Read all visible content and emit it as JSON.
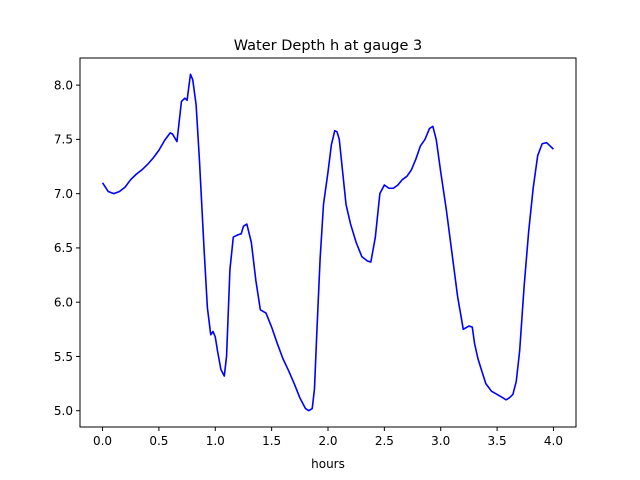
{
  "chart_data": {
    "type": "line",
    "title": "Water Depth h at gauge 3",
    "xlabel": "hours",
    "ylabel": "",
    "xlim": [
      -0.2,
      4.2
    ],
    "ylim": [
      4.85,
      8.25
    ],
    "grid": false,
    "x_ticks": [
      0.0,
      0.5,
      1.0,
      1.5,
      2.0,
      2.5,
      3.0,
      3.5,
      4.0
    ],
    "x_tick_labels": [
      "0.0",
      "0.5",
      "1.0",
      "1.5",
      "2.0",
      "2.5",
      "3.0",
      "3.5",
      "4.0"
    ],
    "y_ticks": [
      5.0,
      5.5,
      6.0,
      6.5,
      7.0,
      7.5,
      8.0
    ],
    "y_tick_labels": [
      "5.0",
      "5.5",
      "6.0",
      "6.5",
      "7.0",
      "7.5",
      "8.0"
    ],
    "line_color": "#0000ff",
    "series": [
      {
        "x": [
          0.0,
          0.05,
          0.1,
          0.15,
          0.2,
          0.25,
          0.3,
          0.35,
          0.4,
          0.45,
          0.5,
          0.55,
          0.6,
          0.62,
          0.66,
          0.7,
          0.73,
          0.75,
          0.78,
          0.8,
          0.83,
          0.86,
          0.9,
          0.93,
          0.96,
          0.98,
          1.0,
          1.02,
          1.05,
          1.08,
          1.1,
          1.13,
          1.16,
          1.2,
          1.23,
          1.25,
          1.28,
          1.32,
          1.36,
          1.4,
          1.45,
          1.5,
          1.55,
          1.6,
          1.65,
          1.7,
          1.75,
          1.8,
          1.83,
          1.86,
          1.88,
          1.9,
          1.93,
          1.96,
          2.0,
          2.03,
          2.06,
          2.08,
          2.1,
          2.13,
          2.16,
          2.2,
          2.25,
          2.3,
          2.35,
          2.38,
          2.42,
          2.46,
          2.5,
          2.54,
          2.58,
          2.62,
          2.66,
          2.7,
          2.74,
          2.78,
          2.82,
          2.86,
          2.9,
          2.93,
          2.96,
          3.0,
          3.05,
          3.1,
          3.15,
          3.2,
          3.25,
          3.28,
          3.3,
          3.33,
          3.36,
          3.4,
          3.45,
          3.5,
          3.55,
          3.58,
          3.61,
          3.64,
          3.67,
          3.7,
          3.74,
          3.78,
          3.82,
          3.86,
          3.9,
          3.94,
          3.97,
          4.0
        ],
        "y": [
          7.1,
          7.02,
          7.0,
          7.02,
          7.06,
          7.13,
          7.18,
          7.22,
          7.27,
          7.33,
          7.4,
          7.49,
          7.56,
          7.55,
          7.48,
          7.85,
          7.88,
          7.86,
          8.1,
          8.05,
          7.82,
          7.3,
          6.5,
          5.95,
          5.7,
          5.73,
          5.68,
          5.55,
          5.38,
          5.32,
          5.5,
          6.3,
          6.6,
          6.62,
          6.63,
          6.7,
          6.72,
          6.55,
          6.2,
          5.93,
          5.9,
          5.77,
          5.62,
          5.48,
          5.37,
          5.25,
          5.12,
          5.02,
          5.0,
          5.02,
          5.2,
          5.7,
          6.4,
          6.9,
          7.2,
          7.45,
          7.58,
          7.57,
          7.5,
          7.2,
          6.9,
          6.72,
          6.55,
          6.42,
          6.38,
          6.37,
          6.6,
          7.0,
          7.08,
          7.05,
          7.05,
          7.08,
          7.13,
          7.16,
          7.22,
          7.32,
          7.44,
          7.5,
          7.6,
          7.62,
          7.5,
          7.2,
          6.85,
          6.45,
          6.05,
          5.75,
          5.78,
          5.77,
          5.62,
          5.48,
          5.38,
          5.25,
          5.18,
          5.15,
          5.12,
          5.1,
          5.12,
          5.15,
          5.27,
          5.55,
          6.15,
          6.65,
          7.05,
          7.35,
          7.46,
          7.47,
          7.44,
          7.41
        ]
      }
    ]
  }
}
